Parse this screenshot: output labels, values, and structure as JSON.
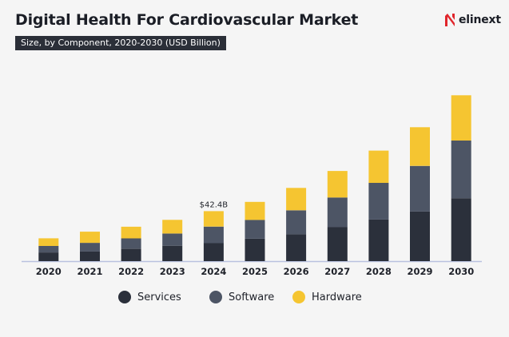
{
  "header": {
    "title": "Digital Health For Cardiovascular Market",
    "subtitle": "Size, by Component, 2020-2030 (USD Billion)"
  },
  "brand": {
    "name": "elinext",
    "logo_icon": "elinext-logo-icon",
    "color": "#e0252b"
  },
  "colors": {
    "Services": "#2b303b",
    "Software": "#4d5565",
    "Hardware": "#f5c531",
    "axis": "#b9c2df",
    "text": "#1e2129"
  },
  "legend": [
    {
      "label": "Services"
    },
    {
      "label": "Software"
    },
    {
      "label": "Hardware"
    }
  ],
  "chart_data": {
    "type": "bar",
    "stacked": true,
    "categories": [
      "2020",
      "2021",
      "2022",
      "2023",
      "2024",
      "2025",
      "2026",
      "2027",
      "2028",
      "2029",
      "2030"
    ],
    "series": [
      {
        "name": "Services",
        "values": [
          7.4,
          8.2,
          10.6,
          13.1,
          15.3,
          19.0,
          22.8,
          28.8,
          35.3,
          42.1,
          53.4
        ]
      },
      {
        "name": "Software",
        "values": [
          5.5,
          7.3,
          8.7,
          10.3,
          14.0,
          16.0,
          20.3,
          25.2,
          31.1,
          38.7,
          48.9
        ]
      },
      {
        "name": "Hardware",
        "values": [
          6.5,
          9.5,
          9.9,
          11.6,
          13.1,
          15.3,
          19.0,
          22.5,
          27.4,
          32.8,
          38.4
        ]
      }
    ],
    "annotations": [
      {
        "category": "2024",
        "text": "$42.4B"
      }
    ],
    "ylim": [
      0,
      145
    ],
    "xlabel": "",
    "ylabel": "",
    "grid": false,
    "legend_position": "bottom"
  }
}
